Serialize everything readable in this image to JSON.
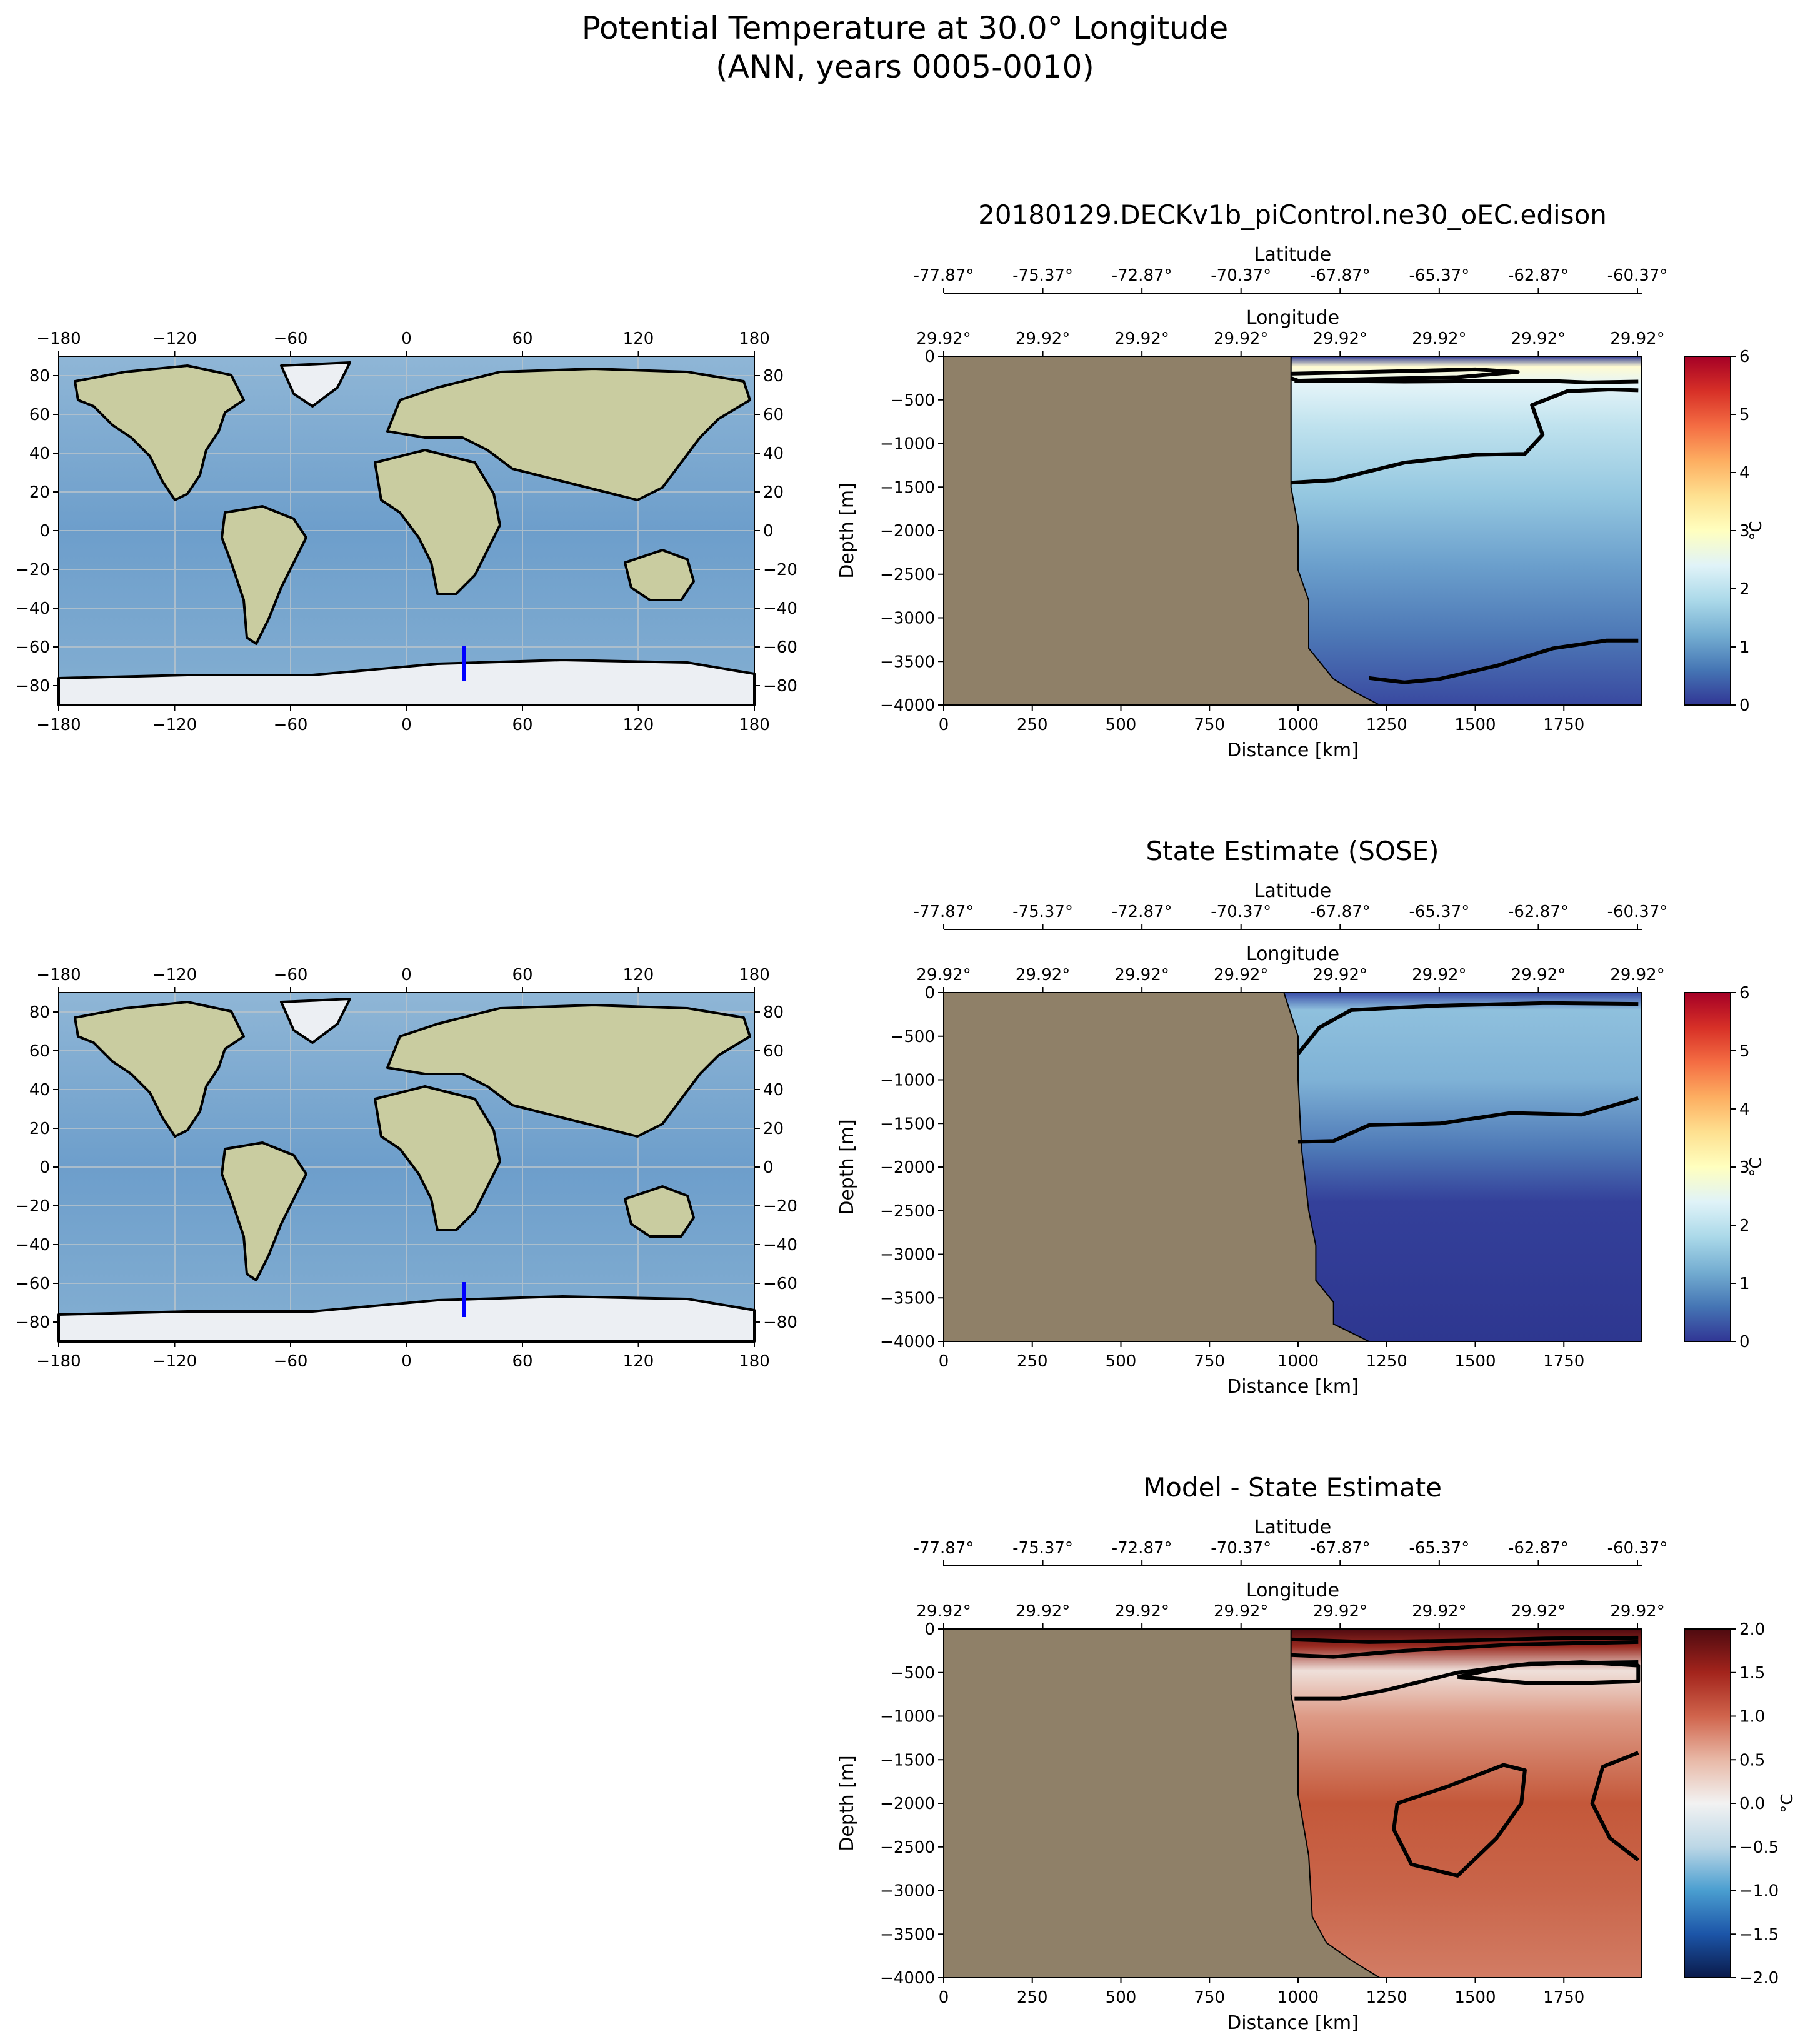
{
  "figure": {
    "title_line1": "Potential Temperature at 30.0° Longitude",
    "title_line2": "(ANN, years 0005-0010)"
  },
  "colors": {
    "land": "#8f8068",
    "ocean_map": "#7fa9cf",
    "transect_line": "#0000ff",
    "temp_cmap": [
      "#313695",
      "#4575b4",
      "#74add1",
      "#abd9e9",
      "#e0f3f8",
      "#ffffbf",
      "#fee090",
      "#fdae61",
      "#f46d43",
      "#d73027",
      "#a50026"
    ],
    "diff_cmap": [
      "#0a1a4a",
      "#1c55a8",
      "#4a9ed0",
      "#bcd7e6",
      "#f2f2f2",
      "#e8b8a6",
      "#d0644c",
      "#a3241c",
      "#4e0a10"
    ]
  },
  "map_axes": {
    "lon_ticks": [
      "−180",
      "−120",
      "−60",
      "0",
      "60",
      "120",
      "180"
    ],
    "lat_ticks": [
      "80",
      "60",
      "40",
      "20",
      "0",
      "−20",
      "−40",
      "−60",
      "−80"
    ]
  },
  "section_axes": {
    "lat_axis_label": "Latitude",
    "lat_ticks": [
      "-77.87°",
      "-75.37°",
      "-72.87°",
      "-70.37°",
      "-67.87°",
      "-65.37°",
      "-62.87°",
      "-60.37°"
    ],
    "lon_axis_label": "Longitude",
    "lon_ticks": [
      "29.92°",
      "29.92°",
      "29.92°",
      "29.92°",
      "29.92°",
      "29.92°",
      "29.92°",
      "29.92°"
    ],
    "xlabel": "Distance [km]",
    "ylabel": "Depth [m]",
    "x_ticks": [
      "0",
      "250",
      "500",
      "750",
      "1000",
      "1250",
      "1500",
      "1750"
    ],
    "y_ticks": [
      "0",
      "−500",
      "−1000",
      "−1500",
      "−2000",
      "−2500",
      "−3000",
      "−3500",
      "−4000"
    ],
    "cbar_unit": "°C"
  },
  "panels": [
    {
      "title": "20180129.DECKv1b_piControl.ne30_oEC.edison",
      "cbar_ticks": [
        "6",
        "5",
        "4",
        "3",
        "2",
        "1",
        "0"
      ]
    },
    {
      "title": "State Estimate (SOSE)",
      "cbar_ticks": [
        "6",
        "5",
        "4",
        "3",
        "2",
        "1",
        "0"
      ]
    },
    {
      "title": "Model - State Estimate",
      "cbar_ticks": [
        "2.0",
        "1.5",
        "1.0",
        "0.5",
        "0.0",
        "−0.5",
        "−1.0",
        "−1.5",
        "−2.0"
      ]
    }
  ],
  "chart_data": [
    {
      "type": "heatmap",
      "name": "model",
      "xlabel": "Distance [km]",
      "ylabel": "Depth [m]",
      "xlim": [
        0,
        1970
      ],
      "ylim": [
        -4000,
        0
      ],
      "clim": [
        0,
        6
      ],
      "units": "°C",
      "contour_levels": [
        0,
        1,
        2
      ],
      "transect": {
        "longitude": 30.0,
        "lat_range": [
          -77.87,
          -60.37
        ]
      },
      "bathymetry_km": [
        980,
        980,
        980,
        1000,
        1000,
        1030,
        1030,
        1040,
        1100,
        1160,
        1230
      ],
      "bathymetry_depth_m": [
        0,
        -500,
        -1500,
        -1950,
        -2450,
        -2800,
        -3350,
        -3400,
        -3700,
        -3850,
        -4000
      ],
      "temperature_profile": {
        "depth_m": [
          0,
          -100,
          -250,
          -600,
          -1500,
          -2500,
          -3500,
          -4000
        ],
        "temp_c": [
          0.3,
          3.0,
          2.3,
          1.6,
          1.0,
          0.75,
          0.55,
          0.4
        ]
      }
    },
    {
      "type": "heatmap",
      "name": "sose",
      "xlabel": "Distance [km]",
      "ylabel": "Depth [m]",
      "xlim": [
        0,
        1970
      ],
      "ylim": [
        -4000,
        0
      ],
      "clim": [
        0,
        6
      ],
      "units": "°C",
      "contour_levels": [
        0,
        1
      ],
      "transect": {
        "longitude": 30.0,
        "lat_range": [
          -77.87,
          -60.37
        ]
      },
      "bathymetry_km": [
        960,
        1000,
        1000,
        1010,
        1030,
        1050,
        1050,
        1100,
        1100,
        1200
      ],
      "bathymetry_depth_m": [
        0,
        -500,
        -1000,
        -1800,
        -2500,
        -2900,
        -3300,
        -3550,
        -3800,
        -4000
      ],
      "temperature_profile": {
        "depth_m": [
          0,
          -100,
          -500,
          -1500,
          -2500,
          -3500,
          -4000
        ],
        "temp_c": [
          0.2,
          1.0,
          1.2,
          0.8,
          0.3,
          0.2,
          0.15
        ]
      }
    },
    {
      "type": "heatmap",
      "name": "difference",
      "xlabel": "Distance [km]",
      "ylabel": "Depth [m]",
      "xlim": [
        0,
        1970
      ],
      "ylim": [
        -4000,
        0
      ],
      "clim": [
        -2,
        2
      ],
      "units": "°C",
      "contour_levels": [
        0,
        0.5,
        1.0
      ],
      "transect": {
        "longitude": 30.0,
        "lat_range": [
          -77.87,
          -60.37
        ]
      },
      "bathymetry_km": [
        980,
        980,
        1000,
        1000,
        1030,
        1040,
        1080,
        1150,
        1230
      ],
      "bathymetry_depth_m": [
        0,
        -750,
        -1200,
        -1900,
        -2600,
        -3300,
        -3600,
        -3800,
        -4000
      ],
      "difference_profile": {
        "depth_m": [
          0,
          -150,
          -500,
          -1000,
          -2000,
          -3000,
          -4000
        ],
        "diff_c": [
          2.0,
          1.5,
          0.4,
          0.9,
          1.0,
          0.9,
          0.75
        ]
      }
    }
  ]
}
